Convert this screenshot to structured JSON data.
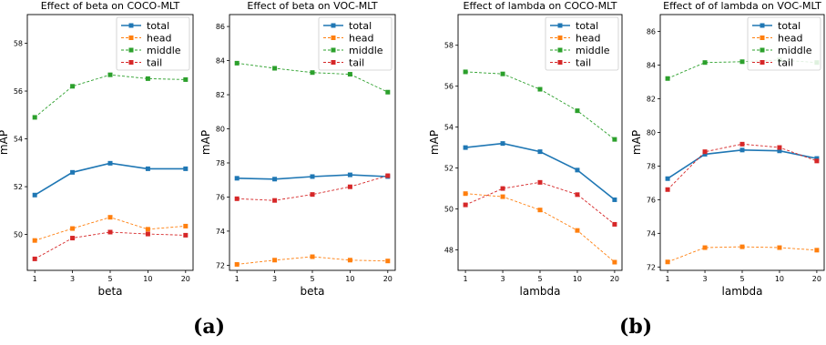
{
  "panel_labels": [
    "(a)",
    "(b)"
  ],
  "series_styles": [
    {
      "name": "total",
      "color": "#1f77b4",
      "dashed": false
    },
    {
      "name": "head",
      "color": "#ff7f0e",
      "dashed": true
    },
    {
      "name": "middle",
      "color": "#2ca02c",
      "dashed": true
    },
    {
      "name": "tail",
      "color": "#d62728",
      "dashed": true
    }
  ],
  "chart_data": [
    {
      "type": "line",
      "title": "Effect of beta on COCO-MLT",
      "xlabel": "beta",
      "ylabel": "mAP",
      "categories": [
        "1",
        "3",
        "5",
        "10",
        "20"
      ],
      "ylim": [
        48.5,
        59.2
      ],
      "yticks": [
        50,
        52,
        54,
        56,
        58
      ],
      "legend": "top-right",
      "series": [
        {
          "name": "total",
          "values": [
            51.65,
            52.6,
            52.98,
            52.75,
            52.75
          ]
        },
        {
          "name": "head",
          "values": [
            49.75,
            50.25,
            50.72,
            50.22,
            50.35
          ]
        },
        {
          "name": "middle",
          "values": [
            54.9,
            56.2,
            56.68,
            56.52,
            56.48
          ]
        },
        {
          "name": "tail",
          "values": [
            48.98,
            49.85,
            50.1,
            50.02,
            49.97
          ]
        }
      ]
    },
    {
      "type": "line",
      "title": "Effect of beta on VOC-MLT",
      "xlabel": "beta",
      "ylabel": "mAP",
      "categories": [
        "1",
        "3",
        "5",
        "10",
        "20"
      ],
      "ylim": [
        71.7,
        86.7
      ],
      "yticks": [
        72,
        74,
        76,
        78,
        80,
        82,
        84,
        86
      ],
      "legend": "top-right",
      "series": [
        {
          "name": "total",
          "values": [
            77.1,
            77.05,
            77.2,
            77.3,
            77.2
          ]
        },
        {
          "name": "head",
          "values": [
            72.05,
            72.3,
            72.5,
            72.3,
            72.25
          ]
        },
        {
          "name": "middle",
          "values": [
            83.85,
            83.55,
            83.3,
            83.2,
            82.15
          ]
        },
        {
          "name": "tail",
          "values": [
            75.9,
            75.8,
            76.15,
            76.6,
            77.25
          ]
        }
      ]
    },
    {
      "type": "line",
      "title": "Effect of lambda on COCO-MLT",
      "xlabel": "lambda",
      "ylabel": "mAP",
      "categories": [
        "1",
        "3",
        "5",
        "10",
        "20"
      ],
      "ylim": [
        47.0,
        59.5
      ],
      "yticks": [
        48,
        50,
        52,
        54,
        56,
        58
      ],
      "legend": "top-right",
      "series": [
        {
          "name": "total",
          "values": [
            53.0,
            53.2,
            52.8,
            51.9,
            50.45
          ]
        },
        {
          "name": "head",
          "values": [
            50.75,
            50.6,
            49.95,
            48.95,
            47.4
          ]
        },
        {
          "name": "middle",
          "values": [
            56.7,
            56.6,
            55.85,
            54.8,
            53.4
          ]
        },
        {
          "name": "tail",
          "values": [
            50.2,
            51.0,
            51.3,
            50.7,
            49.25
          ]
        }
      ]
    },
    {
      "type": "line",
      "title": "Effect of of lambda on VOC-MLT",
      "xlabel": "lambda",
      "ylabel": "mAP",
      "categories": [
        "1",
        "3",
        "5",
        "10",
        "20"
      ],
      "ylim": [
        71.8,
        87.0
      ],
      "yticks": [
        72,
        74,
        76,
        78,
        80,
        82,
        84,
        86
      ],
      "legend": "top-right",
      "series": [
        {
          "name": "total",
          "values": [
            77.25,
            78.7,
            78.95,
            78.9,
            78.45
          ]
        },
        {
          "name": "head",
          "values": [
            72.3,
            73.15,
            73.2,
            73.15,
            73.0
          ]
        },
        {
          "name": "middle",
          "values": [
            83.2,
            84.15,
            84.2,
            84.3,
            84.15
          ]
        },
        {
          "name": "tail",
          "values": [
            76.6,
            78.85,
            79.3,
            79.1,
            78.3
          ]
        }
      ]
    }
  ]
}
